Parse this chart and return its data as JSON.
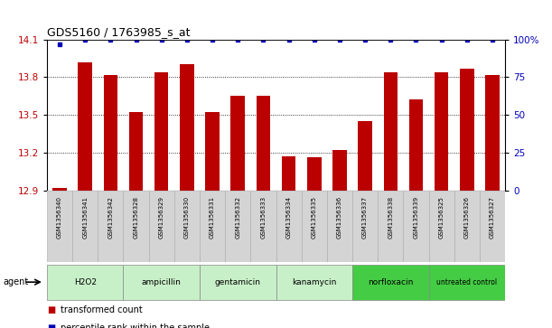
{
  "title": "GDS5160 / 1763985_s_at",
  "categories": [
    "GSM1356340",
    "GSM1356341",
    "GSM1356342",
    "GSM1356328",
    "GSM1356329",
    "GSM1356330",
    "GSM1356331",
    "GSM1356332",
    "GSM1356333",
    "GSM1356334",
    "GSM1356335",
    "GSM1356336",
    "GSM1356337",
    "GSM1356338",
    "GSM1356339",
    "GSM1356325",
    "GSM1356326",
    "GSM1356327"
  ],
  "bar_values": [
    12.92,
    13.92,
    13.82,
    13.52,
    13.84,
    13.9,
    13.52,
    13.65,
    13.65,
    13.17,
    13.16,
    13.22,
    13.45,
    13.84,
    13.62,
    13.84,
    13.87,
    13.82
  ],
  "percentile_values": [
    97,
    100,
    100,
    100,
    100,
    100,
    100,
    100,
    100,
    100,
    100,
    100,
    100,
    100,
    100,
    100,
    100,
    100
  ],
  "groups": [
    {
      "label": "H2O2",
      "start": 0,
      "end": 3,
      "color": "#c8f0c8"
    },
    {
      "label": "ampicillin",
      "start": 3,
      "end": 6,
      "color": "#c8f0c8"
    },
    {
      "label": "gentamicin",
      "start": 6,
      "end": 9,
      "color": "#c8f0c8"
    },
    {
      "label": "kanamycin",
      "start": 9,
      "end": 12,
      "color": "#c8f0c8"
    },
    {
      "label": "norfloxacin",
      "start": 12,
      "end": 15,
      "color": "#44cc44"
    },
    {
      "label": "untreated control",
      "start": 15,
      "end": 18,
      "color": "#44cc44"
    }
  ],
  "ylim": [
    12.9,
    14.1
  ],
  "yticks": [
    12.9,
    13.2,
    13.5,
    13.8,
    14.1
  ],
  "right_yticks": [
    0,
    25,
    50,
    75,
    100
  ],
  "bar_color": "#bb0000",
  "percentile_color": "#0000bb",
  "bg_color": "#ffffff",
  "legend_bar_label": "transformed count",
  "legend_percentile_label": "percentile rank within the sample",
  "agent_label": "agent"
}
